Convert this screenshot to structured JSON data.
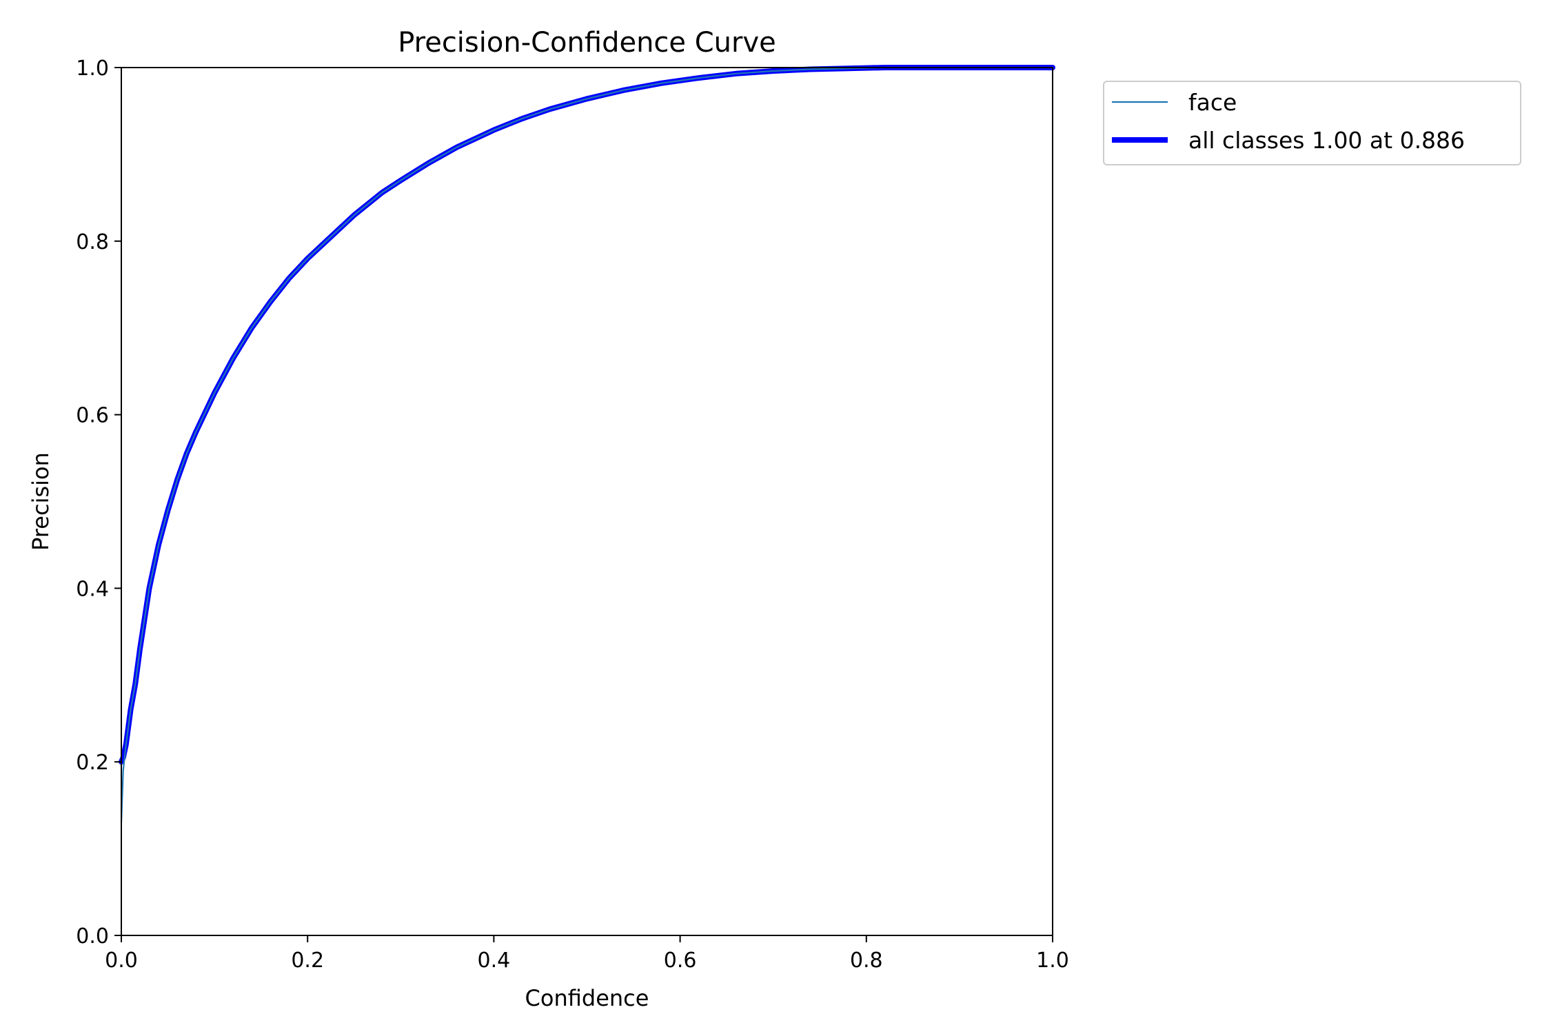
{
  "chart_data": {
    "type": "line",
    "title": "Precision-Confidence Curve",
    "xlabel": "Confidence",
    "ylabel": "Precision",
    "xlim": [
      0.0,
      1.0
    ],
    "ylim": [
      0.0,
      1.0
    ],
    "xticks": [
      0.0,
      0.2,
      0.4,
      0.6,
      0.8,
      1.0
    ],
    "yticks": [
      0.0,
      0.2,
      0.4,
      0.6,
      0.8,
      1.0
    ],
    "xtick_labels": [
      "0.0",
      "0.2",
      "0.4",
      "0.6",
      "0.8",
      "1.0"
    ],
    "ytick_labels": [
      "0.0",
      "0.2",
      "0.4",
      "0.6",
      "0.8",
      "1.0"
    ],
    "grid": false,
    "legend_placement": "outside-top-right",
    "series": [
      {
        "name": "face",
        "color": "#1f77b4",
        "line_style": "thin",
        "x": [
          0.0,
          0.002,
          0.005,
          0.01,
          0.015,
          0.02,
          0.03,
          0.04,
          0.05,
          0.06,
          0.07,
          0.08,
          0.1,
          0.12,
          0.14,
          0.16,
          0.18,
          0.2,
          0.22,
          0.25,
          0.28,
          0.3,
          0.33,
          0.36,
          0.4,
          0.43,
          0.46,
          0.5,
          0.54,
          0.58,
          0.62,
          0.66,
          0.7,
          0.74,
          0.78,
          0.82,
          0.86,
          0.9,
          0.95,
          1.0
        ],
        "y": [
          0.13,
          0.19,
          0.22,
          0.26,
          0.29,
          0.33,
          0.4,
          0.45,
          0.49,
          0.525,
          0.555,
          0.58,
          0.625,
          0.665,
          0.7,
          0.73,
          0.757,
          0.78,
          0.8,
          0.83,
          0.856,
          0.87,
          0.89,
          0.908,
          0.928,
          0.941,
          0.952,
          0.964,
          0.974,
          0.982,
          0.988,
          0.993,
          0.996,
          0.998,
          0.999,
          1.0,
          1.0,
          1.0,
          1.0,
          1.0
        ]
      },
      {
        "name": "all classes 1.00 at 0.886",
        "color": "#0000ff",
        "line_style": "thick",
        "x": [
          0.0,
          0.002,
          0.005,
          0.01,
          0.015,
          0.02,
          0.03,
          0.04,
          0.05,
          0.06,
          0.07,
          0.08,
          0.1,
          0.12,
          0.14,
          0.16,
          0.18,
          0.2,
          0.22,
          0.25,
          0.28,
          0.3,
          0.33,
          0.36,
          0.4,
          0.43,
          0.46,
          0.5,
          0.54,
          0.58,
          0.62,
          0.66,
          0.7,
          0.74,
          0.78,
          0.82,
          0.86,
          0.9,
          0.95,
          1.0
        ],
        "y": [
          0.2,
          0.205,
          0.22,
          0.26,
          0.29,
          0.33,
          0.4,
          0.45,
          0.49,
          0.525,
          0.555,
          0.58,
          0.625,
          0.665,
          0.7,
          0.73,
          0.757,
          0.78,
          0.8,
          0.83,
          0.856,
          0.87,
          0.89,
          0.908,
          0.928,
          0.941,
          0.952,
          0.964,
          0.974,
          0.982,
          0.988,
          0.993,
          0.996,
          0.998,
          0.999,
          1.0,
          1.0,
          1.0,
          1.0,
          1.0
        ]
      }
    ]
  }
}
